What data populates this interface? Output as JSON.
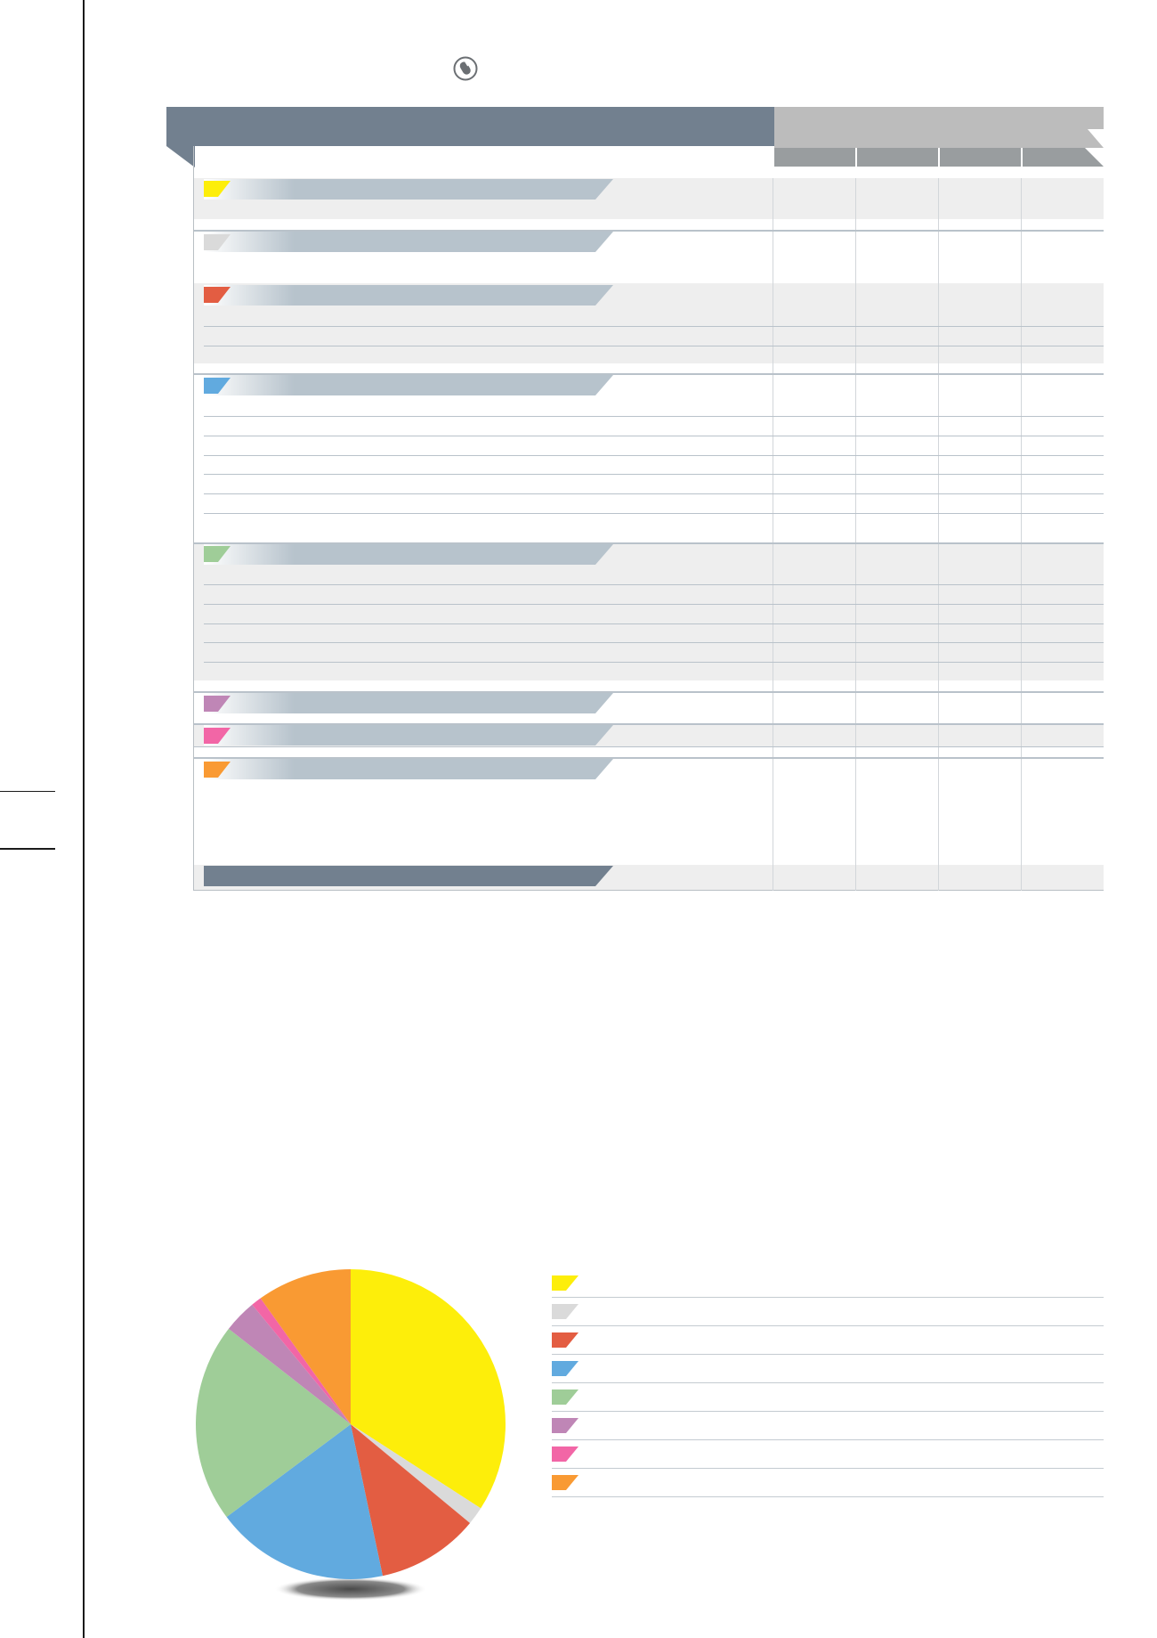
{
  "colors": {
    "header_left": "#72808f",
    "header_right": "#bcbcbc",
    "column_header": "#999d9f",
    "category_bar": "#b7c3cc",
    "total_bar": "#72808f",
    "row_shade": "#eeeeee"
  },
  "icons": {
    "header_icon": "mouse-icon"
  },
  "table": {
    "categories": [
      {
        "color": "#fdee0a"
      },
      {
        "color": "#dadada"
      },
      {
        "color": "#e35d42"
      },
      {
        "color": "#61aadf"
      },
      {
        "color": "#9fcd98"
      },
      {
        "color": "#bf86b6"
      },
      {
        "color": "#f266a6"
      },
      {
        "color": "#f99a33"
      }
    ]
  },
  "chart_data": {
    "type": "pie",
    "legend_position": "right",
    "slices": [
      {
        "color": "#fdee0a",
        "value": 34.5
      },
      {
        "color": "#dadada",
        "value": 1.9
      },
      {
        "color": "#e35d42",
        "value": 10.8
      },
      {
        "color": "#61aadf",
        "value": 18.3
      },
      {
        "color": "#9fcd98",
        "value": 21.0
      },
      {
        "color": "#bf86b6",
        "value": 3.5
      },
      {
        "color": "#f266a6",
        "value": 1.1
      },
      {
        "color": "#f99a33",
        "value": 10.0
      }
    ]
  }
}
